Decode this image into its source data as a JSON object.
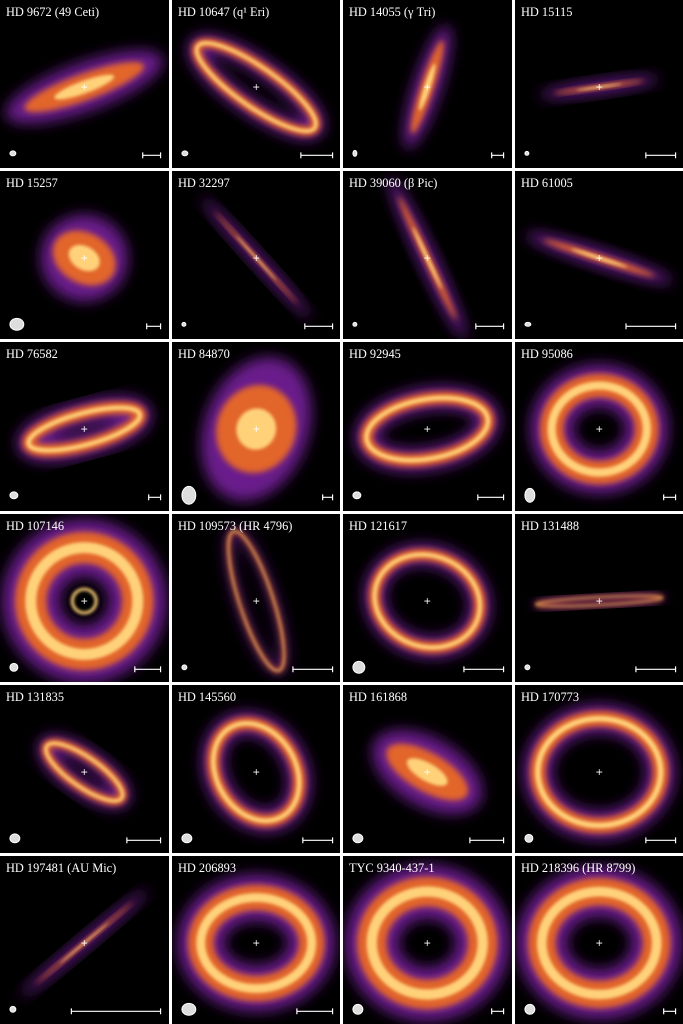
{
  "panels": [
    {
      "label": "HD 9672 (49 Ceti)"
    },
    {
      "label": "HD 10647 (q¹ Eri)"
    },
    {
      "label": "HD 14055 (γ Tri)"
    },
    {
      "label": "HD 15115"
    },
    {
      "label": "HD 15257"
    },
    {
      "label": "HD 32297"
    },
    {
      "label": "HD 39060 (β Pic)"
    },
    {
      "label": "HD 61005"
    },
    {
      "label": "HD 76582"
    },
    {
      "label": "HD 84870"
    },
    {
      "label": "HD 92945"
    },
    {
      "label": "HD 95086"
    },
    {
      "label": "HD 107146"
    },
    {
      "label": "HD 109573 (HR 4796)"
    },
    {
      "label": "HD 121617"
    },
    {
      "label": "HD 131488"
    },
    {
      "label": "HD 131835"
    },
    {
      "label": "HD 145560"
    },
    {
      "label": "HD 161868"
    },
    {
      "label": "HD 170773"
    },
    {
      "label": "HD 197481 (AU Mic)"
    },
    {
      "label": "HD 206893"
    },
    {
      "label": "TYC 9340-437-1"
    },
    {
      "label": "HD 218396 (HR 8799)"
    }
  ]
}
